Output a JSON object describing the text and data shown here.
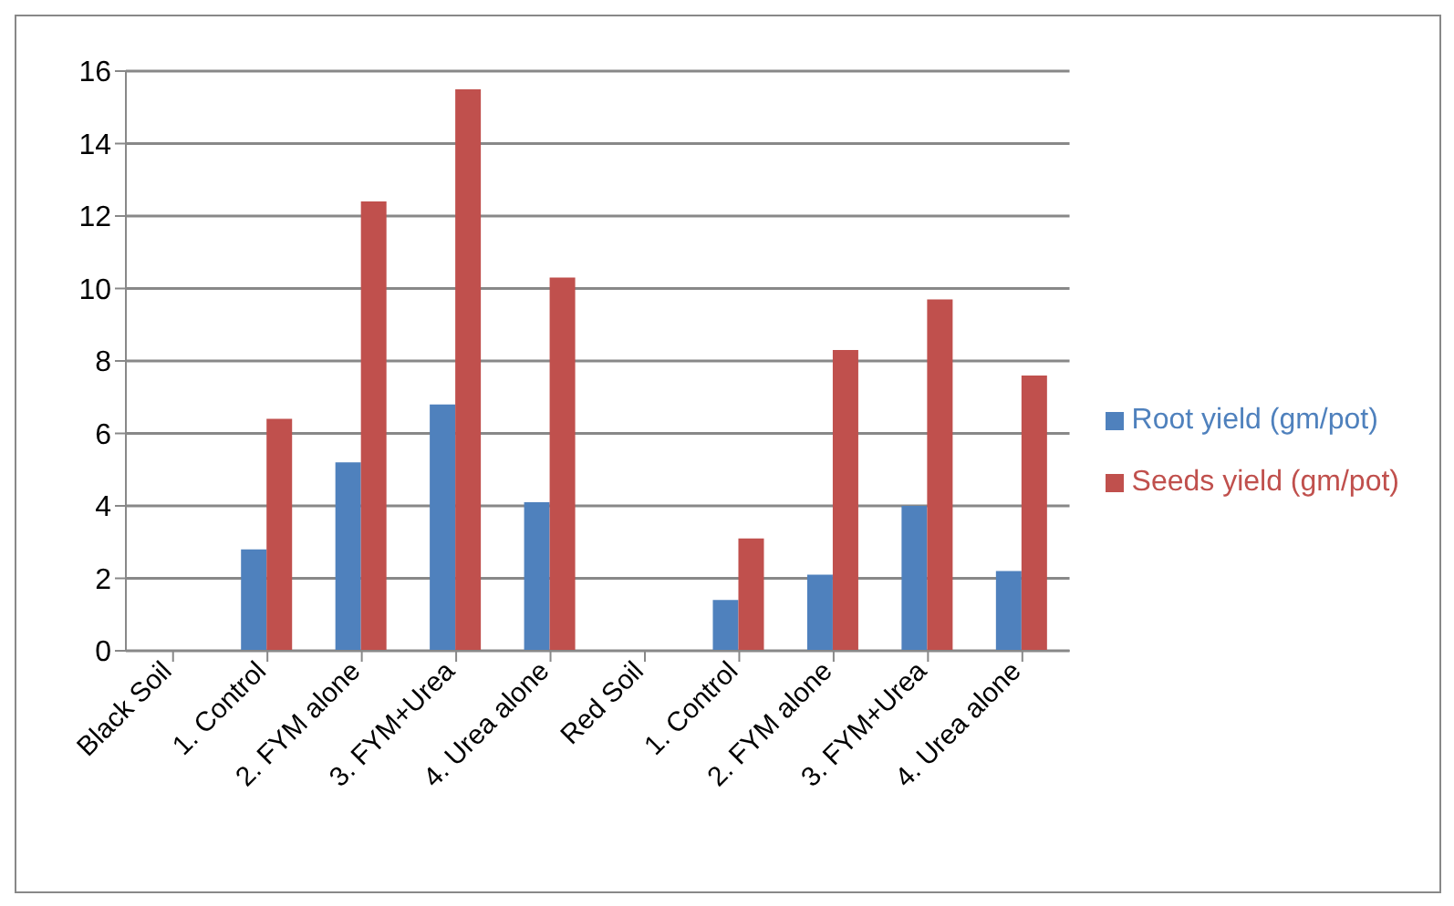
{
  "chart_data": {
    "type": "bar",
    "categories": [
      "Black Soil",
      "1. Control",
      "2. FYM alone",
      "3. FYM+Urea",
      "4. Urea alone",
      "Red Soil",
      "1. Control",
      "2. FYM alone",
      "3. FYM+Urea",
      "4. Urea alone"
    ],
    "series": [
      {
        "name": "Root yield (gm/pot)",
        "color": "#4f81bd",
        "values": [
          null,
          2.8,
          5.2,
          6.8,
          4.1,
          null,
          1.4,
          2.1,
          4.0,
          2.2
        ]
      },
      {
        "name": "Seeds yield (gm/pot)",
        "color": "#c0504d",
        "values": [
          null,
          6.4,
          12.4,
          15.5,
          10.3,
          null,
          3.1,
          8.3,
          9.7,
          7.6
        ]
      }
    ],
    "ylim": [
      0,
      16
    ],
    "yticks": [
      0,
      2,
      4,
      6,
      8,
      10,
      12,
      14,
      16
    ],
    "grid": "y",
    "legend": "right"
  }
}
